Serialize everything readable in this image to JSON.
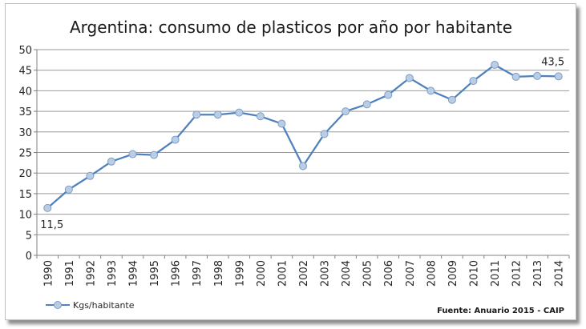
{
  "chart_data": {
    "type": "line",
    "title": "Argentina: consumo de plasticos por año por habitante",
    "xlabel": "",
    "ylabel": "",
    "categories": [
      "1990",
      "1991",
      "1992",
      "1993",
      "1994",
      "1995",
      "1996",
      "1997",
      "1998",
      "1999",
      "2000",
      "2001",
      "2002",
      "2003",
      "2004",
      "2005",
      "2006",
      "2007",
      "2008",
      "2009",
      "2010",
      "2011",
      "2012",
      "2013",
      "2014"
    ],
    "y_ticks": [
      "0",
      "5",
      "10",
      "15",
      "20",
      "25",
      "30",
      "35",
      "40",
      "45",
      "50"
    ],
    "ylim": [
      0,
      50
    ],
    "grid": true,
    "legend_position": "bottom-left",
    "series": [
      {
        "name": "Kgs/habitante",
        "color": "#4f81bd",
        "marker_fill": "#b9cde5",
        "values": [
          11.5,
          16.0,
          19.3,
          22.8,
          24.6,
          24.4,
          28.1,
          34.2,
          34.2,
          34.7,
          33.8,
          32.0,
          21.7,
          29.5,
          35.0,
          36.7,
          39.0,
          43.1,
          40.0,
          37.8,
          42.4,
          46.3,
          43.4,
          43.6,
          43.5
        ]
      }
    ],
    "data_labels": [
      {
        "index": 0,
        "text": "11,5"
      },
      {
        "index": 24,
        "text": "43,5"
      }
    ],
    "source": "Fuente: Anuario 2015 - CAIP"
  }
}
